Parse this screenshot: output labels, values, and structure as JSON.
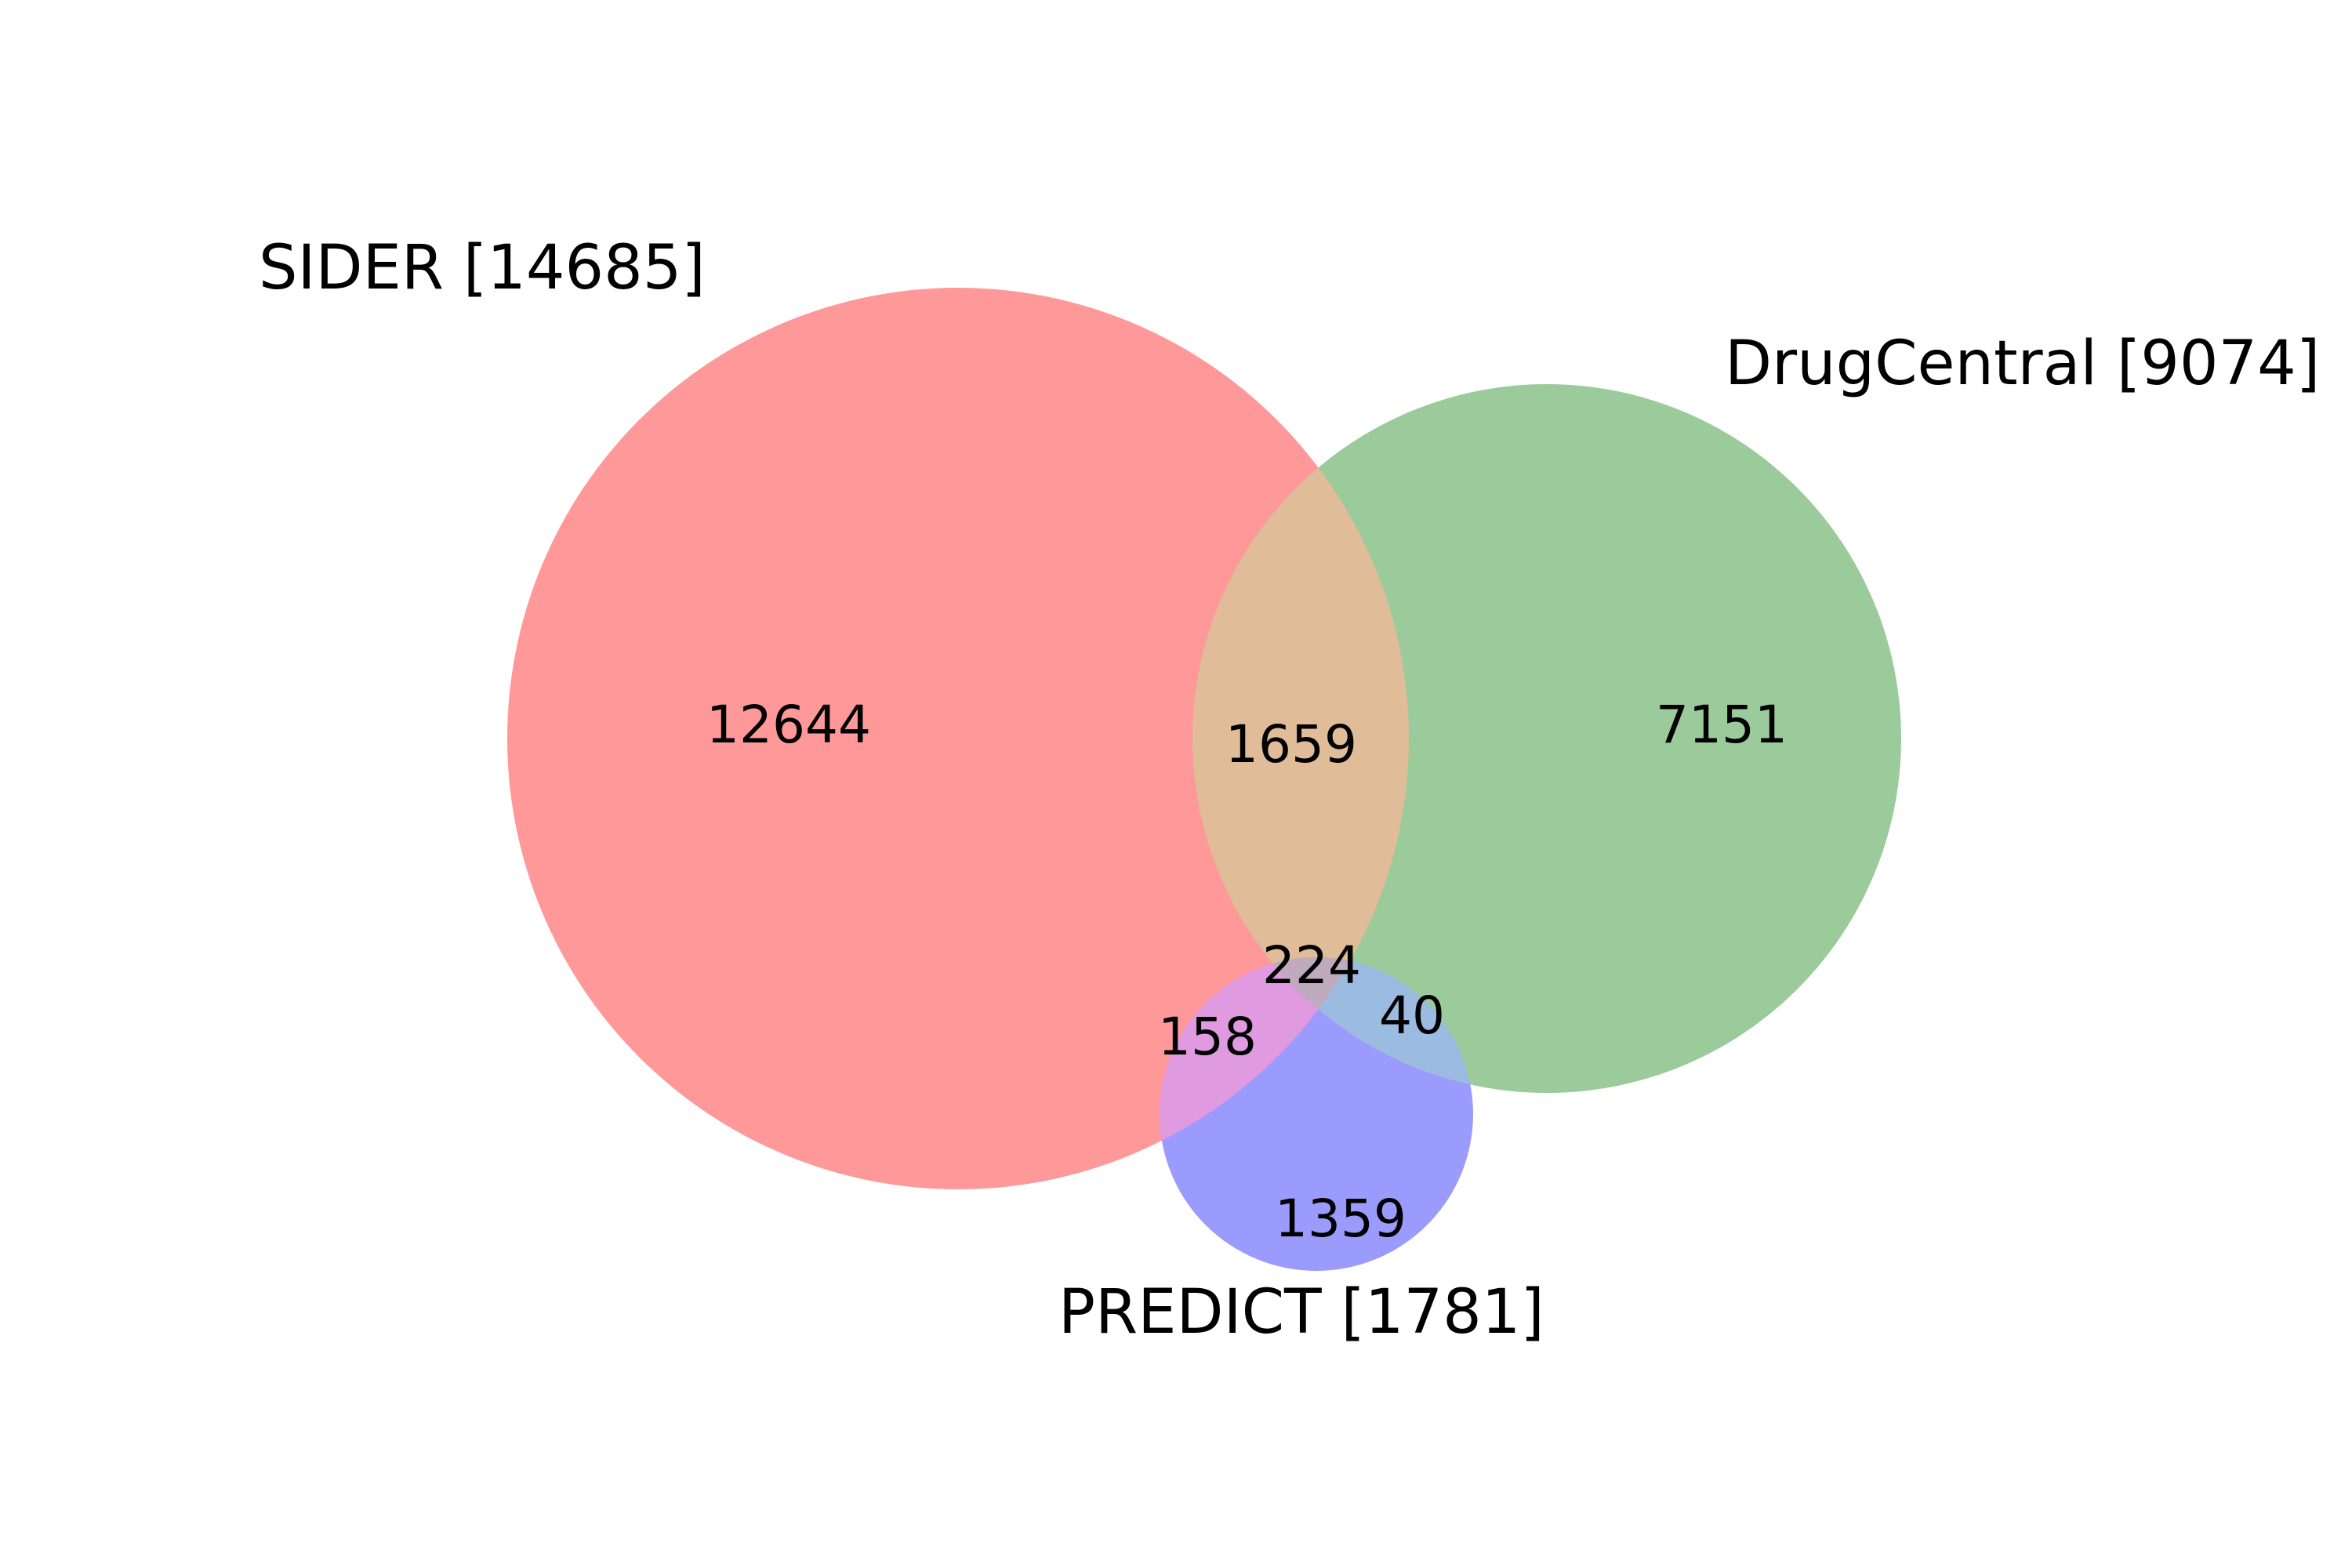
{
  "diagram": {
    "type": "venn",
    "sets": [
      {
        "id": "sider",
        "label": "SIDER [14685]",
        "color": "#ff6666"
      },
      {
        "id": "drugcentral",
        "label": "DrugCentral [9074]",
        "color": "#66b266"
      },
      {
        "id": "predict",
        "label": "PREDICT [1781]",
        "color": "#6666ff"
      }
    ],
    "regions": {
      "sider_only": "12644",
      "drugcentral_only": "7151",
      "predict_only": "1359",
      "sider_drugcentral": "1659",
      "sider_predict": "158",
      "drugcentral_predict": "40",
      "all_three": "224"
    }
  }
}
